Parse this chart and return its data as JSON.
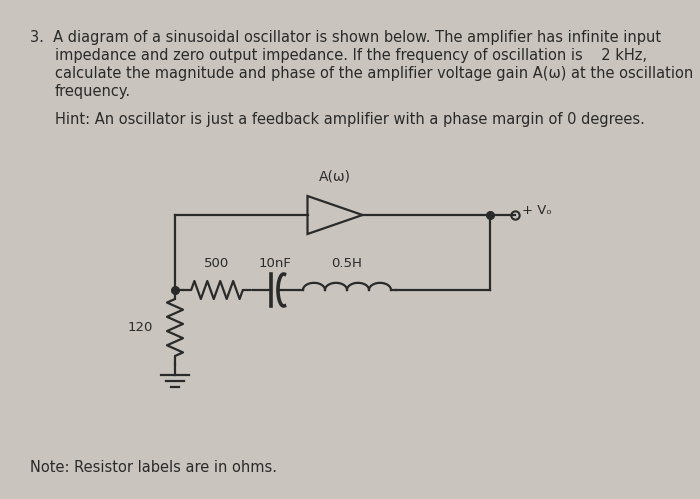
{
  "bg_color": "#c9c5be",
  "text_color": "#1a1a1a",
  "line_color": "#2a2a2a",
  "amplifier_label": "A(ω)",
  "vo_label": "+ Vₒ",
  "r1_label": "500",
  "r2_label": "120",
  "c_label": "10nF",
  "l_label": "0.5H",
  "line1": "3.  A diagram of a sinusoidal oscillator is shown below. The amplifier has infinite input",
  "line2": "impedance and zero output impedance. If the frequency of oscillation is    2 kHz,",
  "line3": "calculate the magnitude and phase of the amplifier voltage gain A(ω) at the oscillation",
  "line4": "frequency.",
  "hint_text": "Hint: An oscillator is just a feedback amplifier with a phase margin of 0 degrees.",
  "note_text": "Note: Resistor labels are in ohms.",
  "font_size_text": 10.5
}
